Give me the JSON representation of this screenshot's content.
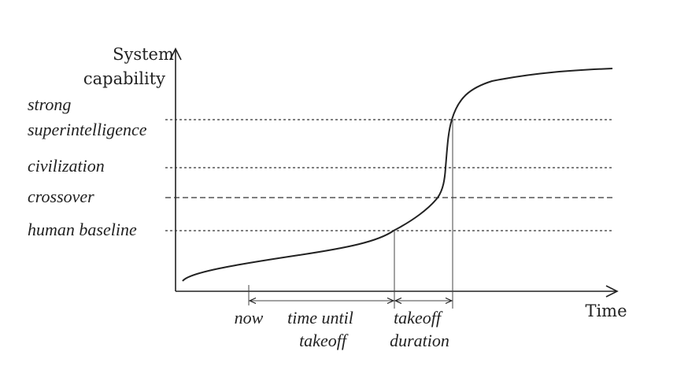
{
  "axes": {
    "y_label_line1": "System",
    "y_label_line2": "capability",
    "x_label": "Time"
  },
  "levels": {
    "strong_line1": "strong",
    "strong_line2": "superintelligence",
    "civilization": "civilization",
    "crossover": "crossover",
    "human_baseline": "human baseline"
  },
  "intervals": {
    "now": "now",
    "time_until_line1": "time until",
    "time_until_line2": "takeoff",
    "takeoff_line1": "takeoff",
    "takeoff_line2": "duration"
  },
  "colors": {
    "ink": "#222222",
    "background": "#ffffff"
  }
}
